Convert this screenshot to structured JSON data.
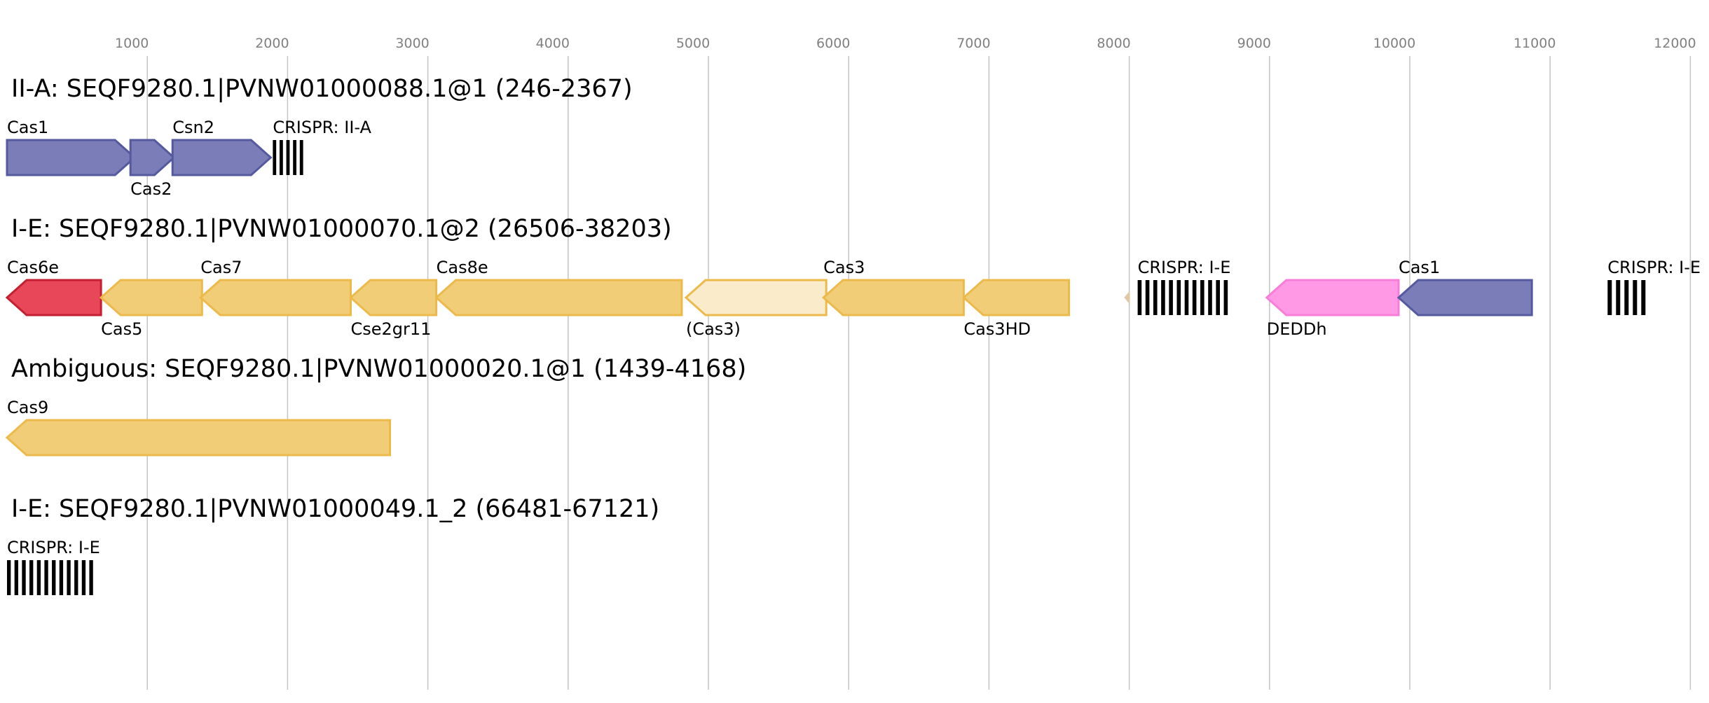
{
  "axis": {
    "ticks": [
      {
        "value": 1000,
        "label": "1000"
      },
      {
        "value": 2000,
        "label": "2000"
      },
      {
        "value": 3000,
        "label": "3000"
      },
      {
        "value": 4000,
        "label": "4000"
      },
      {
        "value": 5000,
        "label": "5000"
      },
      {
        "value": 6000,
        "label": "6000"
      },
      {
        "value": 7000,
        "label": "7000"
      },
      {
        "value": 8000,
        "label": "8000"
      },
      {
        "value": 9000,
        "label": "9000"
      },
      {
        "value": 10000,
        "label": "10000"
      },
      {
        "value": 11000,
        "label": "11000"
      },
      {
        "value": 12000,
        "label": "12000"
      }
    ]
  },
  "colors": {
    "blue": "#7a7db8",
    "blue_stroke": "#555a9f",
    "orange": "#f2cd78",
    "orange_stroke": "#ecb94b",
    "orange_light": "#faebcb",
    "red": "#e8475a",
    "red_stroke": "#c42032",
    "pink": "#ff99e6",
    "pink_stroke": "#f77ed8",
    "tan": "#e0c8a8"
  },
  "loci": [
    {
      "title": "II-A: SEQF9280.1|PVNW01000088.1@1 (246-2367)",
      "genes": [
        {
          "name": "Cas1",
          "start": 0,
          "end": 910,
          "strand": "+",
          "color": "blue",
          "label_pos": "above"
        },
        {
          "name": "Cas2",
          "start": 880,
          "end": 1190,
          "strand": "+",
          "color": "blue",
          "label_pos": "below"
        },
        {
          "name": "Csn2",
          "start": 1180,
          "end": 1880,
          "strand": "+",
          "color": "blue",
          "label_pos": "above"
        }
      ],
      "crisprs": [
        {
          "name": "CRISPR: II-A",
          "start": 1895,
          "end": 2135,
          "repeats": 5
        }
      ]
    },
    {
      "title": "I-E: SEQF9280.1|PVNW01000070.1@2 (26506-38203)",
      "genes": [
        {
          "name": "Cas6e",
          "start": 0,
          "end": 670,
          "strand": "-",
          "color": "red",
          "label_pos": "above"
        },
        {
          "name": "Cas5",
          "start": 670,
          "end": 1390,
          "strand": "-",
          "color": "orange",
          "label_pos": "below"
        },
        {
          "name": "Cas7",
          "start": 1380,
          "end": 2450,
          "strand": "-",
          "color": "orange",
          "label_pos": "above"
        },
        {
          "name": "Cse2gr11",
          "start": 2450,
          "end": 3060,
          "strand": "-",
          "color": "orange",
          "label_pos": "below"
        },
        {
          "name": "Cas8e",
          "start": 3060,
          "end": 4810,
          "strand": "-",
          "color": "orange",
          "label_pos": "above"
        },
        {
          "name": "(Cas3)",
          "start": 4840,
          "end": 5840,
          "strand": "-",
          "color": "orange_light",
          "label_pos": "below"
        },
        {
          "name": "Cas3",
          "start": 5820,
          "end": 6820,
          "strand": "-",
          "color": "orange",
          "label_pos": "above"
        },
        {
          "name": "Cas3HD",
          "start": 6820,
          "end": 7570,
          "strand": "-",
          "color": "orange",
          "label_pos": "below"
        },
        {
          "name": "DEDDh",
          "start": 8980,
          "end": 9920,
          "strand": "-",
          "color": "pink",
          "label_pos": "below"
        },
        {
          "name": "Cas1",
          "start": 9920,
          "end": 10870,
          "strand": "-",
          "color": "blue",
          "label_pos": "above"
        }
      ],
      "crisprs": [
        {
          "name": "CRISPR: I-E",
          "start": 8060,
          "end": 8730,
          "repeats": 12
        },
        {
          "name": "CRISPR: I-E",
          "start": 11410,
          "end": 11710,
          "repeats": 5
        }
      ]
    },
    {
      "title": "Ambiguous: SEQF9280.1|PVNW01000020.1@1 (1439-4168)",
      "genes": [
        {
          "name": "Cas9",
          "start": 0,
          "end": 2730,
          "strand": "-",
          "color": "orange",
          "label_pos": "above"
        }
      ],
      "crisprs": []
    },
    {
      "title": "I-E: SEQF9280.1|PVNW01000049.1_2 (66481-67121)",
      "genes": [],
      "crisprs": [
        {
          "name": "CRISPR: I-E",
          "start": 0,
          "end": 640,
          "repeats": 12
        }
      ]
    }
  ]
}
